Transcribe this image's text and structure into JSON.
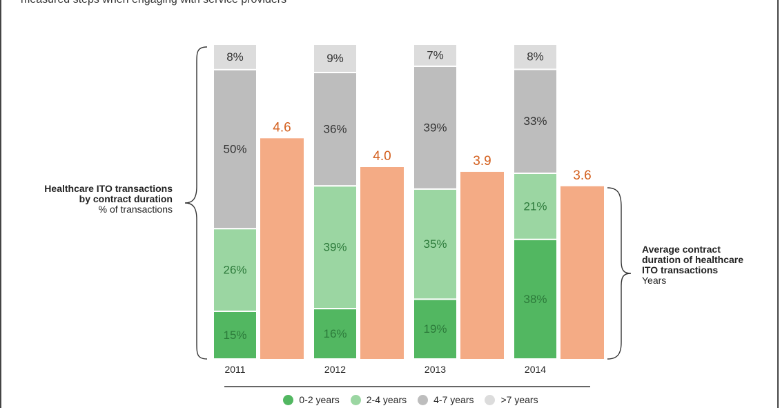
{
  "subtitle": "measured steps when engaging with service providers",
  "left_label": {
    "title_line1": "Healthcare ITO transactions",
    "title_line2": "by contract duration",
    "unit": "% of transactions"
  },
  "right_label": {
    "title_line1": "Average contract",
    "title_line2": "duration of healthcare",
    "title_line3": "ITO transactions",
    "unit": "Years"
  },
  "colors": {
    "s0_2": "#52b761",
    "s2_4": "#9bd6a2",
    "s4_7": "#bdbdbd",
    "s7p": "#dcdcdc",
    "avg": "#f4ab85",
    "avg_text": "#d35f1d",
    "label_green": "#2c7a3a",
    "label_gray": "#333333"
  },
  "chart_data": {
    "type": "bar",
    "categories": [
      "2011",
      "2012",
      "2013",
      "2014"
    ],
    "series": [
      {
        "name": "0-2 years",
        "values": [
          15,
          16,
          19,
          38
        ]
      },
      {
        "name": "2-4 years",
        "values": [
          26,
          39,
          35,
          21
        ]
      },
      {
        "name": "4-7 years",
        "values": [
          50,
          36,
          39,
          33
        ]
      },
      {
        "name": ">7 years",
        "values": [
          8,
          9,
          7,
          8
        ]
      }
    ],
    "average_duration": {
      "values": [
        4.6,
        4.0,
        3.9,
        3.6
      ],
      "labels": [
        "4.6",
        "4.0",
        "3.9",
        "3.6"
      ]
    },
    "legend_position": "bottom"
  }
}
